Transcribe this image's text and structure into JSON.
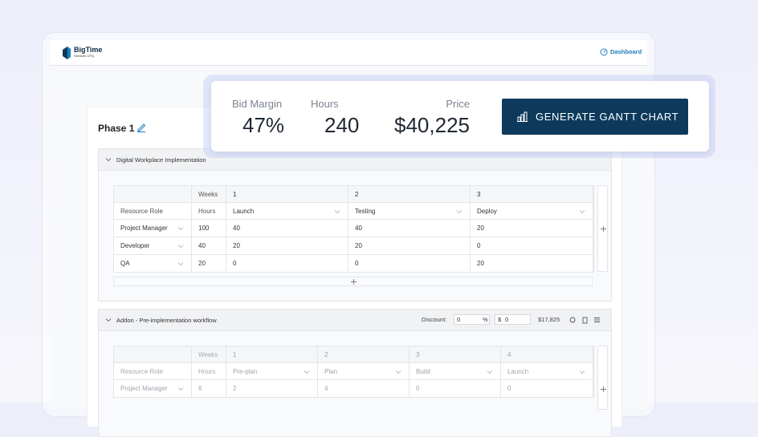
{
  "header": {
    "logo_title": "BigTime",
    "logo_subtitle": "Services CPQ",
    "nav_link": "Dashboard"
  },
  "summary": {
    "metrics": [
      {
        "label": "Bid Margin",
        "value": "47%"
      },
      {
        "label": "Hours",
        "value": "240"
      },
      {
        "label": "Price",
        "value": "$40,225"
      }
    ],
    "button": "GENERATE GANTT CHART"
  },
  "phase": {
    "title": "Phase 1"
  },
  "sections": [
    {
      "title": "Digital Workplace Implementation",
      "table": {
        "week_header": "Weeks",
        "weeks": [
          "1",
          "2",
          "3"
        ],
        "role_header": "Resource Role",
        "hours_header": "Hours",
        "phases": [
          "Launch",
          "Testing",
          "Deploy"
        ],
        "rows": [
          {
            "role": "Project Manager",
            "hours": 100,
            "values": [
              40,
              40,
              20
            ]
          },
          {
            "role": "Developer",
            "hours": 40,
            "values": [
              20,
              20,
              0
            ]
          },
          {
            "role": "QA",
            "hours": 20,
            "values": [
              0,
              0,
              20
            ]
          }
        ]
      }
    },
    {
      "title": "Addon - Pre-implementation workflow",
      "discount_label": "Discount:",
      "discount_value": "0",
      "percent": "%",
      "currency": "$",
      "amount_value": "0",
      "total": "$17,825",
      "table": {
        "week_header": "Weeks",
        "weeks": [
          "1",
          "2",
          "3",
          "4"
        ],
        "role_header": "Resource Role",
        "hours_header": "Hours",
        "phases": [
          "Pre-plan",
          "Plan",
          "Build",
          "Launch"
        ],
        "rows": [
          {
            "role": "Project Manager",
            "hours": 6,
            "values": [
              2,
              4,
              0,
              0
            ]
          }
        ]
      }
    }
  ]
}
